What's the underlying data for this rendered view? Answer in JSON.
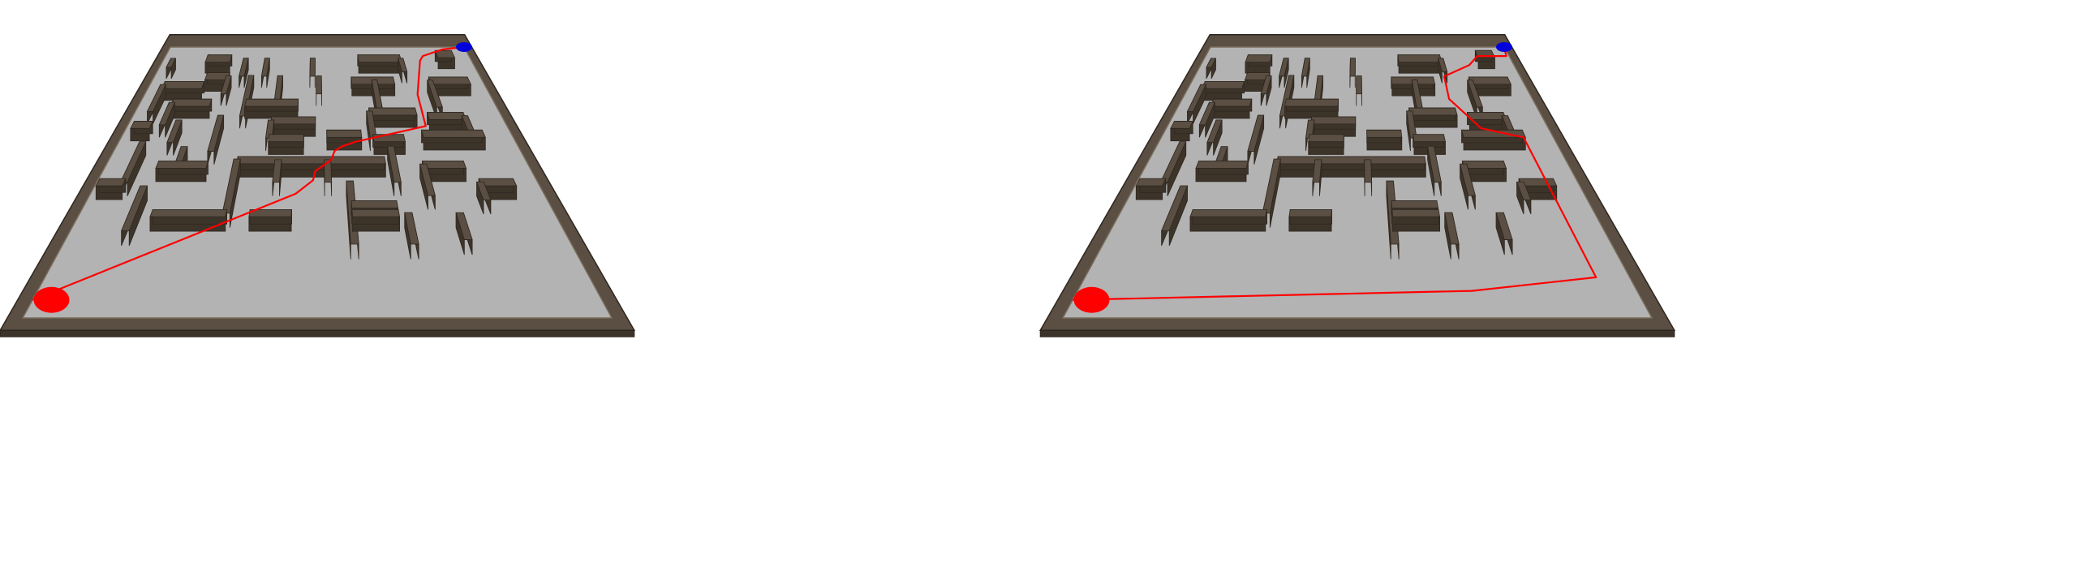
{
  "colors": {
    "background": "#ffffff",
    "floor": "#b3b3b3",
    "wall_top": "#5a4f42",
    "wall_side": "#3d3429",
    "wall_edge": "#2e2620",
    "path": "#ff0000",
    "start": "#ff0000",
    "goal": "#0000dd"
  },
  "scenes": [
    {
      "name": "left-maze",
      "path_kind": "direct-route",
      "path": [
        [
          0,
          0.8
        ],
        [
          9.5,
          5.5
        ],
        [
          10.3,
          6.1
        ],
        [
          10.4,
          6.5
        ],
        [
          11.2,
          7.0
        ],
        [
          11.4,
          7.4
        ],
        [
          11.8,
          7.6
        ],
        [
          12.5,
          7.8
        ],
        [
          16.5,
          8.5
        ],
        [
          16.6,
          9.9
        ],
        [
          17.5,
          11.4
        ],
        [
          17.8,
          11.6
        ],
        [
          19.4,
          11.9
        ],
        [
          21.0,
          12.0
        ]
      ]
    },
    {
      "name": "right-maze",
      "path_kind": "detour-route",
      "path": [
        [
          0,
          0.8
        ],
        [
          14.8,
          1.2
        ],
        [
          19.7,
          1.8
        ],
        [
          19.4,
          8.0
        ],
        [
          17.3,
          8.4
        ],
        [
          16.0,
          9.7
        ],
        [
          16.1,
          10.7
        ],
        [
          18.0,
          11.2
        ],
        [
          18.8,
          11.6
        ],
        [
          20.8,
          11.6
        ],
        [
          21.0,
          12.0
        ]
      ]
    }
  ]
}
